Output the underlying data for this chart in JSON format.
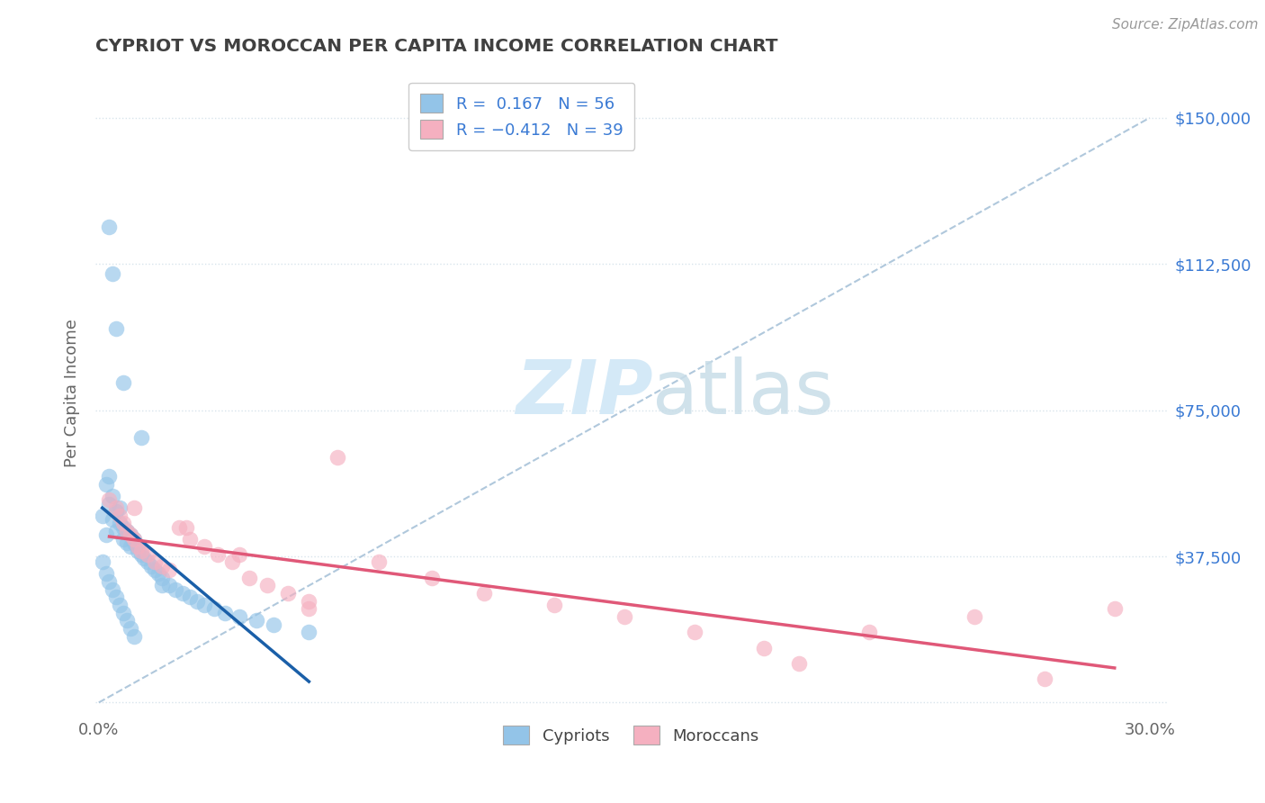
{
  "title": "CYPRIOT VS MOROCCAN PER CAPITA INCOME CORRELATION CHART",
  "source": "Source: ZipAtlas.com",
  "ylabel": "Per Capita Income",
  "xlim": [
    -0.001,
    0.305
  ],
  "ylim": [
    -3000,
    162000
  ],
  "xticks": [
    0.0,
    0.05,
    0.1,
    0.15,
    0.2,
    0.25,
    0.3
  ],
  "xticklabels": [
    "0.0%",
    "",
    "",
    "",
    "",
    "",
    "30.0%"
  ],
  "ytick_positions": [
    0,
    37500,
    75000,
    112500,
    150000
  ],
  "ytick_labels": [
    "",
    "$37,500",
    "$75,000",
    "$112,500",
    "$150,000"
  ],
  "cypriot_color": "#93c4e8",
  "moroccan_color": "#f5b0c0",
  "cypriot_line_color": "#1a5fa8",
  "moroccan_line_color": "#e05878",
  "diagonal_color": "#b0c8dc",
  "background_color": "#ffffff",
  "grid_color": "#d8e4ec",
  "title_color": "#404040",
  "source_color": "#999999",
  "yaxis_tick_color": "#3a7ad4",
  "xaxis_tick_color": "#666666",
  "ylabel_color": "#666666",
  "watermark_color": "#d4e9f7",
  "legend_box_color": "#cccccc",
  "legend_text_color": "#3a7ad4",
  "cypriot_x": [
    0.001,
    0.002,
    0.002,
    0.003,
    0.003,
    0.004,
    0.004,
    0.005,
    0.005,
    0.006,
    0.006,
    0.007,
    0.007,
    0.008,
    0.008,
    0.009,
    0.009,
    0.01,
    0.01,
    0.011,
    0.011,
    0.012,
    0.013,
    0.014,
    0.015,
    0.016,
    0.017,
    0.018,
    0.02,
    0.022,
    0.024,
    0.026,
    0.028,
    0.03,
    0.033,
    0.036,
    0.04,
    0.045,
    0.05,
    0.06,
    0.001,
    0.002,
    0.003,
    0.004,
    0.005,
    0.006,
    0.007,
    0.008,
    0.009,
    0.01,
    0.003,
    0.004,
    0.005,
    0.007,
    0.012,
    0.018
  ],
  "cypriot_y": [
    48000,
    56000,
    43000,
    58000,
    51000,
    53000,
    47000,
    49000,
    44000,
    50000,
    46000,
    45000,
    42000,
    44000,
    41000,
    43000,
    40000,
    42000,
    41000,
    40000,
    39000,
    38000,
    37000,
    36000,
    35000,
    34000,
    33000,
    32000,
    30000,
    29000,
    28000,
    27000,
    26000,
    25000,
    24000,
    23000,
    22000,
    21000,
    20000,
    18000,
    36000,
    33000,
    31000,
    29000,
    27000,
    25000,
    23000,
    21000,
    19000,
    17000,
    122000,
    110000,
    96000,
    82000,
    68000,
    30000
  ],
  "moroccan_x": [
    0.003,
    0.005,
    0.006,
    0.007,
    0.008,
    0.009,
    0.01,
    0.011,
    0.012,
    0.014,
    0.016,
    0.018,
    0.02,
    0.023,
    0.026,
    0.03,
    0.034,
    0.038,
    0.043,
    0.048,
    0.054,
    0.06,
    0.068,
    0.08,
    0.095,
    0.11,
    0.13,
    0.15,
    0.17,
    0.19,
    0.01,
    0.025,
    0.04,
    0.06,
    0.2,
    0.22,
    0.25,
    0.27,
    0.29
  ],
  "moroccan_y": [
    52000,
    50000,
    48000,
    46000,
    44000,
    43000,
    42000,
    40000,
    39000,
    38000,
    36000,
    35000,
    34000,
    45000,
    42000,
    40000,
    38000,
    36000,
    32000,
    30000,
    28000,
    26000,
    63000,
    36000,
    32000,
    28000,
    25000,
    22000,
    18000,
    14000,
    50000,
    45000,
    38000,
    24000,
    10000,
    18000,
    22000,
    6000,
    24000
  ],
  "cypriot_trend_x": [
    0.001,
    0.06
  ],
  "moroccan_trend_x": [
    0.003,
    0.29
  ]
}
